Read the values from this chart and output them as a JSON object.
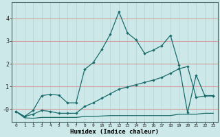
{
  "xlabel": "Humidex (Indice chaleur)",
  "bg_color": "#cce8e8",
  "grid_color_h": "#d4a0a0",
  "grid_color_v": "#b8d4d4",
  "line_color": "#1a6b6b",
  "xlim": [
    -0.5,
    23.5
  ],
  "ylim": [
    -0.55,
    4.7
  ],
  "yticks": [
    0,
    1,
    2,
    3,
    4
  ],
  "ytick_labels": [
    "-0",
    "1",
    "2",
    "3",
    "4"
  ],
  "xticks": [
    0,
    1,
    2,
    3,
    4,
    5,
    6,
    7,
    8,
    9,
    10,
    11,
    12,
    13,
    14,
    15,
    16,
    17,
    18,
    19,
    20,
    21,
    22,
    23
  ],
  "line1_x": [
    0,
    1,
    2,
    3,
    4,
    5,
    6,
    7,
    8,
    9,
    10,
    11,
    12,
    13,
    14,
    15,
    16,
    17,
    18,
    19,
    20,
    21,
    22,
    23
  ],
  "line1_y": [
    -0.1,
    -0.32,
    -0.05,
    0.6,
    0.65,
    0.62,
    0.28,
    0.28,
    1.75,
    2.05,
    2.62,
    3.3,
    4.28,
    3.35,
    3.05,
    2.45,
    2.6,
    2.8,
    3.25,
    1.95,
    -0.15,
    1.5,
    0.6,
    0.6
  ],
  "line2_x": [
    0,
    1,
    2,
    3,
    4,
    5,
    6,
    7,
    8,
    9,
    10,
    11,
    12,
    13,
    14,
    15,
    16,
    17,
    18,
    19,
    20,
    21,
    22,
    23
  ],
  "line2_y": [
    -0.1,
    -0.32,
    -0.22,
    -0.05,
    -0.1,
    -0.18,
    -0.18,
    -0.18,
    0.12,
    0.28,
    0.48,
    0.68,
    0.88,
    0.98,
    1.08,
    1.18,
    1.28,
    1.4,
    1.58,
    1.78,
    1.88,
    0.52,
    0.58,
    0.58
  ],
  "line3_x": [
    0,
    1,
    2,
    3,
    4,
    5,
    6,
    7,
    8,
    9,
    10,
    11,
    12,
    13,
    14,
    15,
    16,
    17,
    18,
    19,
    20,
    21,
    22,
    23
  ],
  "line3_y": [
    -0.1,
    -0.38,
    -0.4,
    -0.36,
    -0.36,
    -0.36,
    -0.36,
    -0.36,
    -0.32,
    -0.32,
    -0.3,
    -0.28,
    -0.28,
    -0.28,
    -0.28,
    -0.28,
    -0.28,
    -0.28,
    -0.28,
    -0.22,
    -0.22,
    -0.22,
    -0.18,
    -0.18
  ]
}
